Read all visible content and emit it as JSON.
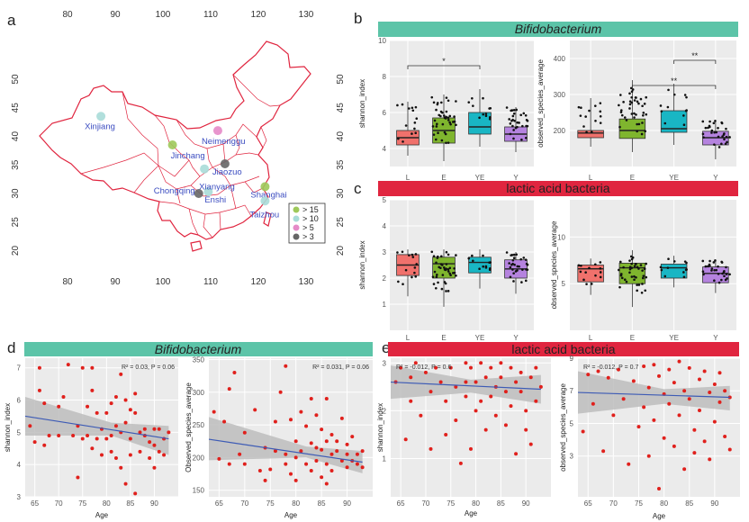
{
  "panel_letters": {
    "a": "a",
    "b": "b",
    "c": "c",
    "d": "d",
    "e": "e"
  },
  "banners": {
    "b": {
      "text": "Bifidobacterium",
      "color": "#5cc4a8"
    },
    "c": {
      "text": "lactic acid bacteria",
      "color": "#e0253f"
    },
    "d": {
      "text": "Bifidobacterium",
      "color": "#5cc4a8"
    },
    "e": {
      "text": "lactic acid bacteria",
      "color": "#e0253f"
    }
  },
  "box_colors": {
    "L": "#f0716c",
    "E": "#7fb52e",
    "YE": "#19b6c4",
    "Y": "#b583df"
  },
  "map": {
    "lon_ticks": [
      "80",
      "90",
      "100",
      "110",
      "120",
      "130"
    ],
    "lat_ticks": [
      "50",
      "45",
      "40",
      "35",
      "30",
      "25",
      "20"
    ],
    "legend": [
      {
        "label": "> 15",
        "color": "#9ec95a"
      },
      {
        "label": "> 10",
        "color": "#a8dcd8"
      },
      {
        "label": "> 5",
        "color": "#e58ac8"
      },
      {
        "label": "> 3",
        "color": "#666666"
      }
    ],
    "sites": [
      {
        "name": "Xinjiang",
        "lon": 87,
        "lat": 43.5,
        "color": "#a8dcd8"
      },
      {
        "name": "Jinchang",
        "lon": 102,
        "lat": 38.5,
        "color": "#9ec95a"
      },
      {
        "name": "Neimenggu",
        "lon": 111.5,
        "lat": 41,
        "color": "#e58ac8"
      },
      {
        "name": "Jiaozuo",
        "lon": 113,
        "lat": 35.2,
        "color": "#666666"
      },
      {
        "name": "Enshi",
        "lon": 109.5,
        "lat": 30.3,
        "color": "#a8dcd8"
      },
      {
        "name": "Chongqing",
        "lon": 107.5,
        "lat": 30,
        "color": "#666666"
      },
      {
        "name": "Xianyang",
        "lon": 108.7,
        "lat": 34.3,
        "color": "#a8dcd8"
      },
      {
        "name": "Shanghai",
        "lon": 121.4,
        "lat": 31.2,
        "color": "#9ec95a"
      },
      {
        "name": "Taizhou",
        "lon": 121.4,
        "lat": 28.7,
        "color": "#a8dcd8"
      }
    ]
  },
  "chart_data": [
    {
      "panel": "b-left",
      "type": "box",
      "title": "Bifidobacterium",
      "categories": [
        "L",
        "E",
        "YE",
        "Y"
      ],
      "ylabel": "shannon_index",
      "ylim": [
        3,
        10
      ],
      "yticks": [
        4,
        6,
        8,
        10
      ],
      "boxes": [
        {
          "q1": 4.2,
          "median": 4.6,
          "q3": 5.0,
          "lo": 3.6,
          "hi": 6.6
        },
        {
          "q1": 4.3,
          "median": 5.0,
          "q3": 5.7,
          "lo": 3.3,
          "hi": 7.0
        },
        {
          "q1": 4.8,
          "median": 5.2,
          "q3": 6.0,
          "lo": 4.1,
          "hi": 7.3
        },
        {
          "q1": 4.4,
          "median": 4.8,
          "q3": 5.2,
          "lo": 3.8,
          "hi": 6.3
        }
      ],
      "significance": [
        {
          "from": "L",
          "to": "YE",
          "label": "*",
          "y": 8.6
        }
      ]
    },
    {
      "panel": "b-right",
      "type": "box",
      "title": "Bifidobacterium",
      "categories": [
        "L",
        "E",
        "YE",
        "Y"
      ],
      "ylabel": "observed_species_average",
      "ylim": [
        100,
        450
      ],
      "yticks": [
        200,
        300,
        400
      ],
      "boxes": [
        {
          "q1": 180,
          "median": 193,
          "q3": 200,
          "lo": 155,
          "hi": 290
        },
        {
          "q1": 178,
          "median": 200,
          "q3": 232,
          "lo": 140,
          "hi": 340
        },
        {
          "q1": 195,
          "median": 205,
          "q3": 255,
          "lo": 160,
          "hi": 330
        },
        {
          "q1": 160,
          "median": 180,
          "q3": 198,
          "lo": 120,
          "hi": 230
        }
      ],
      "significance": [
        {
          "from": "E",
          "to": "Y",
          "label": "**",
          "y": 325
        },
        {
          "from": "YE",
          "to": "Y",
          "label": "**",
          "y": 395
        }
      ]
    },
    {
      "panel": "c-left",
      "type": "box",
      "title": "lactic acid bacteria",
      "categories": [
        "L",
        "E",
        "YE",
        "Y"
      ],
      "ylabel": "shannon_index",
      "ylim": [
        0,
        5
      ],
      "yticks": [
        1,
        2,
        3,
        4,
        5
      ],
      "boxes": [
        {
          "q1": 2.1,
          "median": 2.5,
          "q3": 2.9,
          "lo": 1.3,
          "hi": 3.1
        },
        {
          "q1": 2.0,
          "median": 2.55,
          "q3": 2.8,
          "lo": 0.9,
          "hi": 3.1
        },
        {
          "q1": 2.2,
          "median": 2.6,
          "q3": 2.8,
          "lo": 1.6,
          "hi": 3.1
        },
        {
          "q1": 2.0,
          "median": 2.35,
          "q3": 2.7,
          "lo": 1.4,
          "hi": 3.0
        }
      ]
    },
    {
      "panel": "c-right",
      "type": "box",
      "title": "lactic acid bacteria",
      "categories": [
        "L",
        "E",
        "YE",
        "Y"
      ],
      "ylabel": "observed_species_average",
      "ylim": [
        0,
        14
      ],
      "yticks": [
        5,
        10
      ],
      "boxes": [
        {
          "q1": 5.2,
          "median": 6.6,
          "q3": 7.0,
          "lo": 3.8,
          "hi": 7.7
        },
        {
          "q1": 5.0,
          "median": 6.7,
          "q3": 7.2,
          "lo": 2.5,
          "hi": 8.6
        },
        {
          "q1": 5.6,
          "median": 6.7,
          "q3": 7.1,
          "lo": 4.6,
          "hi": 8.0
        },
        {
          "q1": 5.1,
          "median": 6.1,
          "q3": 6.8,
          "lo": 4.0,
          "hi": 7.6
        }
      ]
    },
    {
      "panel": "d-left",
      "type": "scatter",
      "title": "Bifidobacterium",
      "xlabel": "Age",
      "ylabel": "shannon_index",
      "stat": "R² = 0.03, P = 0.06",
      "xlim": [
        63,
        95
      ],
      "ylim": [
        3,
        7.3
      ],
      "xticks": [
        65,
        70,
        75,
        80,
        85,
        90
      ],
      "yticks": [
        3,
        4,
        5,
        6,
        7
      ],
      "fit": {
        "x": [
          63,
          93
        ],
        "y": [
          5.5,
          4.8
        ]
      },
      "ci": {
        "upper": [
          6.1,
          5.2
        ],
        "lower": [
          4.9,
          4.3
        ],
        "mid_x": 81,
        "mid_upper": 5.3,
        "mid_lower": 4.9
      },
      "points": [
        [
          64,
          5.2
        ],
        [
          65,
          4.7
        ],
        [
          66,
          6.3
        ],
        [
          66,
          7.0
        ],
        [
          67,
          5.9
        ],
        [
          67,
          4.6
        ],
        [
          68,
          4.9
        ],
        [
          70,
          5.8
        ],
        [
          70,
          4.9
        ],
        [
          71,
          6.1
        ],
        [
          72,
          7.1
        ],
        [
          73,
          4.9
        ],
        [
          74,
          3.6
        ],
        [
          74,
          5.2
        ],
        [
          75,
          7.0
        ],
        [
          75,
          4.8
        ],
        [
          76,
          5.8
        ],
        [
          76,
          4.9
        ],
        [
          77,
          6.3
        ],
        [
          77,
          7.0
        ],
        [
          77,
          4.5
        ],
        [
          78,
          5.6
        ],
        [
          78,
          4.8
        ],
        [
          79,
          5.1
        ],
        [
          79,
          4.3
        ],
        [
          80,
          5.6
        ],
        [
          80,
          4.8
        ],
        [
          81,
          5.9
        ],
        [
          81,
          4.9
        ],
        [
          81,
          4.4
        ],
        [
          82,
          6.1
        ],
        [
          82,
          5.2
        ],
        [
          82,
          4.2
        ],
        [
          83,
          6.8
        ],
        [
          83,
          5.0
        ],
        [
          83,
          3.9
        ],
        [
          84,
          6.0
        ],
        [
          84,
          5.3
        ],
        [
          84,
          3.4
        ],
        [
          85,
          5.7
        ],
        [
          85,
          4.8
        ],
        [
          85,
          4.3
        ],
        [
          86,
          6.2
        ],
        [
          86,
          5.6
        ],
        [
          86,
          3.1
        ],
        [
          87,
          5.0
        ],
        [
          87,
          4.4
        ],
        [
          88,
          5.1
        ],
        [
          88,
          4.9
        ],
        [
          89,
          4.7
        ],
        [
          89,
          4.2
        ],
        [
          90,
          5.1
        ],
        [
          90,
          4.6
        ],
        [
          90,
          3.9
        ],
        [
          91,
          5.1
        ],
        [
          91,
          4.4
        ],
        [
          92,
          4.8
        ],
        [
          92,
          4.3
        ],
        [
          93,
          5.0
        ]
      ]
    },
    {
      "panel": "d-right",
      "type": "scatter",
      "title": "Bifidobacterium",
      "xlabel": "Age",
      "ylabel": "Observed_species_average",
      "stat": "R² = 0.031, P = 0.06",
      "xlim": [
        63,
        95
      ],
      "ylim": [
        140,
        352
      ],
      "xticks": [
        65,
        70,
        75,
        80,
        85,
        90
      ],
      "yticks": [
        150,
        200,
        250,
        300,
        350
      ],
      "fit": {
        "x": [
          63,
          93
        ],
        "y": [
          228,
          193
        ]
      },
      "ci": {
        "upper": [
          262,
          210
        ],
        "lower": [
          196,
          176
        ],
        "mid_x": 82,
        "mid_upper": 217,
        "mid_lower": 200
      },
      "points": [
        [
          64,
          270
        ],
        [
          65,
          198
        ],
        [
          66,
          255
        ],
        [
          67,
          305
        ],
        [
          67,
          190
        ],
        [
          68,
          330
        ],
        [
          69,
          205
        ],
        [
          70,
          238
        ],
        [
          70,
          190
        ],
        [
          72,
          273
        ],
        [
          73,
          180
        ],
        [
          74,
          215
        ],
        [
          74,
          165
        ],
        [
          75,
          182
        ],
        [
          76,
          255
        ],
        [
          76,
          210
        ],
        [
          77,
          300
        ],
        [
          78,
          340
        ],
        [
          78,
          205
        ],
        [
          78,
          190
        ],
        [
          79,
          258
        ],
        [
          79,
          175
        ],
        [
          80,
          225
        ],
        [
          80,
          200
        ],
        [
          80,
          165
        ],
        [
          81,
          270
        ],
        [
          81,
          210
        ],
        [
          82,
          248
        ],
        [
          82,
          190
        ],
        [
          83,
          290
        ],
        [
          83,
          222
        ],
        [
          83,
          180
        ],
        [
          84,
          265
        ],
        [
          84,
          215
        ],
        [
          84,
          195
        ],
        [
          85,
          243
        ],
        [
          85,
          212
        ],
        [
          85,
          170
        ],
        [
          86,
          290
        ],
        [
          86,
          225
        ],
        [
          86,
          190
        ],
        [
          86,
          160
        ],
        [
          87,
          235
        ],
        [
          87,
          205
        ],
        [
          87,
          180
        ],
        [
          88,
          225
        ],
        [
          88,
          210
        ],
        [
          89,
          260
        ],
        [
          89,
          195
        ],
        [
          90,
          220
        ],
        [
          90,
          205
        ],
        [
          90,
          185
        ],
        [
          91,
          232
        ],
        [
          91,
          195
        ],
        [
          92,
          205
        ],
        [
          92,
          190
        ],
        [
          93,
          210
        ],
        [
          93,
          185
        ]
      ]
    },
    {
      "panel": "e-left",
      "type": "scatter",
      "title": "lactic acid bacteria",
      "xlabel": "Age",
      "ylabel": "shannon_index",
      "stat": "R² = -0.012, P = 0.6",
      "xlim": [
        63,
        95
      ],
      "ylim": [
        0.2,
        3.1
      ],
      "xticks": [
        65,
        70,
        75,
        80,
        85,
        90
      ],
      "yticks": [
        1,
        2,
        3
      ],
      "fit": {
        "x": [
          63,
          93
        ],
        "y": [
          2.6,
          2.45
        ]
      },
      "ci": {
        "upper": [
          2.95,
          2.75
        ],
        "lower": [
          2.25,
          2.15
        ],
        "mid_x": 79,
        "mid_upper": 2.65,
        "mid_lower": 2.38
      },
      "points": [
        [
          64,
          2.6
        ],
        [
          65,
          2.9
        ],
        [
          66,
          1.4
        ],
        [
          67,
          2.7
        ],
        [
          67,
          2.2
        ],
        [
          68,
          3.0
        ],
        [
          69,
          1.9
        ],
        [
          70,
          2.8
        ],
        [
          71,
          2.4
        ],
        [
          71,
          1.2
        ],
        [
          72,
          2.9
        ],
        [
          73,
          2.6
        ],
        [
          74,
          2.2
        ],
        [
          74,
          1.5
        ],
        [
          75,
          2.9
        ],
        [
          76,
          2.5
        ],
        [
          76,
          1.8
        ],
        [
          77,
          0.9
        ],
        [
          78,
          3.0
        ],
        [
          78,
          2.6
        ],
        [
          78,
          2.3
        ],
        [
          79,
          2.9
        ],
        [
          79,
          1.2
        ],
        [
          80,
          2.6
        ],
        [
          80,
          2.0
        ],
        [
          81,
          3.0
        ],
        [
          81,
          2.2
        ],
        [
          82,
          2.7
        ],
        [
          82,
          1.6
        ],
        [
          83,
          2.9
        ],
        [
          83,
          2.3
        ],
        [
          84,
          2.5
        ],
        [
          84,
          1.9
        ],
        [
          85,
          3.0
        ],
        [
          85,
          2.7
        ],
        [
          86,
          2.4
        ],
        [
          86,
          1.7
        ],
        [
          87,
          2.9
        ],
        [
          87,
          2.1
        ],
        [
          88,
          2.6
        ],
        [
          88,
          1.1
        ],
        [
          89,
          2.8
        ],
        [
          89,
          2.4
        ],
        [
          90,
          2.0
        ],
        [
          90,
          1.6
        ],
        [
          91,
          2.7
        ],
        [
          91,
          1.3
        ],
        [
          92,
          2.9
        ],
        [
          92,
          2.2
        ],
        [
          93,
          2.5
        ]
      ]
    },
    {
      "panel": "e-right",
      "type": "scatter",
      "title": "lactic acid bacteria",
      "xlabel": "Age",
      "ylabel": "observed_species_average",
      "stat": "R² = -0.012, P = 0.7",
      "xlim": [
        63,
        95
      ],
      "ylim": [
        0.5,
        9
      ],
      "xticks": [
        65,
        70,
        75,
        80,
        85,
        90
      ],
      "yticks": [
        3,
        5,
        7,
        9
      ],
      "fit": {
        "x": [
          63,
          93
        ],
        "y": [
          6.9,
          6.6
        ]
      },
      "ci": {
        "upper": [
          8.2,
          7.3
        ],
        "lower": [
          5.6,
          5.8
        ],
        "mid_x": 80,
        "mid_upper": 7.1,
        "mid_lower": 6.2
      },
      "points": [
        [
          64,
          4.5
        ],
        [
          65,
          8.0
        ],
        [
          66,
          6.2
        ],
        [
          67,
          8.2
        ],
        [
          68,
          3.3
        ],
        [
          69,
          7.8
        ],
        [
          70,
          5.5
        ],
        [
          71,
          8.3
        ],
        [
          72,
          6.5
        ],
        [
          73,
          2.5
        ],
        [
          74,
          7.6
        ],
        [
          75,
          4.8
        ],
        [
          76,
          8.5
        ],
        [
          76,
          6.0
        ],
        [
          77,
          7.2
        ],
        [
          77,
          3.0
        ],
        [
          78,
          8.6
        ],
        [
          78,
          5.2
        ],
        [
          79,
          7.9
        ],
        [
          79,
          1.0
        ],
        [
          80,
          6.8
        ],
        [
          80,
          4.1
        ],
        [
          81,
          8.3
        ],
        [
          81,
          6.2
        ],
        [
          82,
          7.5
        ],
        [
          82,
          3.6
        ],
        [
          83,
          8.8
        ],
        [
          83,
          5.5
        ],
        [
          84,
          7.0
        ],
        [
          84,
          2.2
        ],
        [
          85,
          8.4
        ],
        [
          85,
          6.5
        ],
        [
          86,
          4.6
        ],
        [
          86,
          3.2
        ],
        [
          87,
          7.7
        ],
        [
          87,
          5.8
        ],
        [
          88,
          8.2
        ],
        [
          88,
          3.9
        ],
        [
          89,
          6.9
        ],
        [
          89,
          2.8
        ],
        [
          90,
          7.4
        ],
        [
          90,
          5.1
        ],
        [
          91,
          8.1
        ],
        [
          91,
          6.3
        ],
        [
          92,
          7.0
        ],
        [
          92,
          4.2
        ],
        [
          93,
          6.6
        ],
        [
          93,
          3.4
        ]
      ]
    }
  ]
}
